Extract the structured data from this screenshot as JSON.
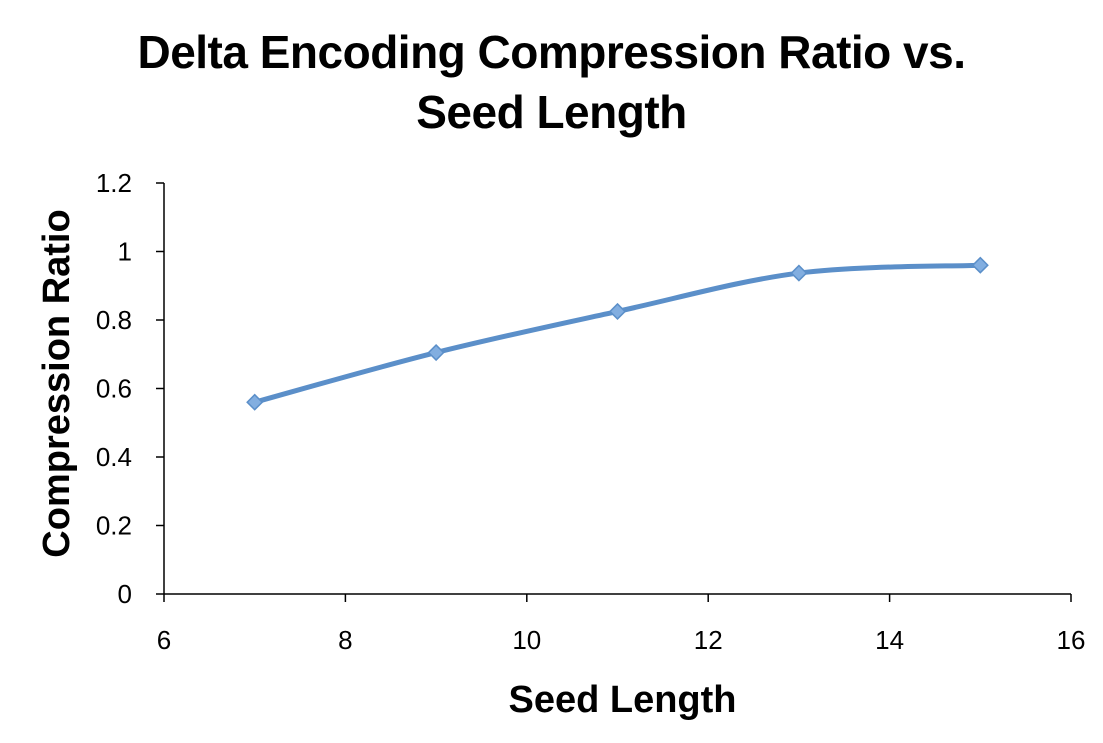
{
  "chart_data": {
    "type": "line",
    "title_lines": [
      "Delta Encoding Compression Ratio vs.",
      "Seed Length"
    ],
    "xlabel": "Seed Length",
    "ylabel": "Compression Ratio",
    "xlim": [
      6,
      16
    ],
    "ylim": [
      0,
      1.2
    ],
    "x_ticks": [
      6,
      8,
      10,
      12,
      14,
      16
    ],
    "y_ticks": [
      0,
      0.2,
      0.4,
      0.6,
      0.8,
      1,
      1.2
    ],
    "x_tick_labels": [
      "6",
      "8",
      "10",
      "12",
      "14",
      "16"
    ],
    "y_tick_labels": [
      "0",
      "0.2",
      "0.4",
      "0.6",
      "0.8",
      "1",
      "1.2"
    ],
    "grid": false,
    "legend": "none",
    "smoothed": true,
    "series": [
      {
        "color": "#5b8fc9",
        "marker_color": "#82aee0",
        "x": [
          7,
          9,
          11,
          13,
          15
        ],
        "y": [
          0.56,
          0.705,
          0.825,
          0.937,
          0.96
        ]
      }
    ]
  }
}
